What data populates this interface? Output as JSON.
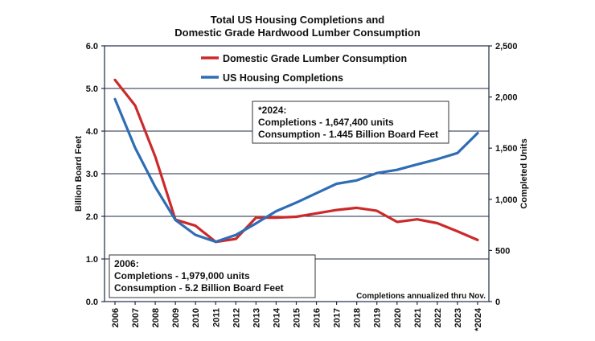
{
  "chart_data": {
    "type": "line",
    "title": [
      "Total US Housing Completions and",
      "Domestic Grade Hardwood Lumber Consumption"
    ],
    "categories": [
      "2006",
      "2007",
      "2008",
      "2009",
      "2010",
      "2011",
      "2012",
      "2013",
      "2014",
      "2015",
      "2016",
      "2017",
      "2018",
      "2019",
      "2020",
      "2021",
      "2022",
      "2023",
      "*2024"
    ],
    "ylabel_left": "Billion Board Feet",
    "ylabel_right": "Completed Units",
    "ylim_left": [
      0,
      6
    ],
    "ylim_right": [
      0,
      2500
    ],
    "yticks_left": [
      "0.0",
      "1.0",
      "2.0",
      "3.0",
      "4.0",
      "5.0",
      "6.0"
    ],
    "yticks_right": [
      "0",
      "500",
      "1,000",
      "1,500",
      "2,000",
      "2,500"
    ],
    "grid": true,
    "series": [
      {
        "name": "Domestic Grade Lumber Consumption",
        "axis": "left",
        "color": "#cc2a2a",
        "values": [
          5.2,
          4.6,
          3.4,
          1.92,
          1.78,
          1.4,
          1.47,
          1.97,
          1.97,
          1.99,
          2.07,
          2.15,
          2.2,
          2.13,
          1.87,
          1.93,
          1.84,
          1.65,
          1.445
        ]
      },
      {
        "name": "US Housing Completions",
        "axis": "right",
        "color": "#2f6db4",
        "values": [
          1979,
          1502,
          1120,
          797,
          652,
          585,
          651,
          764,
          884,
          968,
          1060,
          1152,
          1185,
          1256,
          1288,
          1341,
          1392,
          1452,
          1647
        ]
      }
    ],
    "annotations": {
      "box_2024": [
        "*2024:",
        "Completions - 1,647,400 units",
        "Consumption - 1.445 Billion Board Feet"
      ],
      "box_2006": [
        "2006:",
        "Completions - 1,979,000 units",
        "Consumption - 5.2 Billion Board Feet"
      ],
      "note": "Completions annualized thru Nov."
    }
  }
}
